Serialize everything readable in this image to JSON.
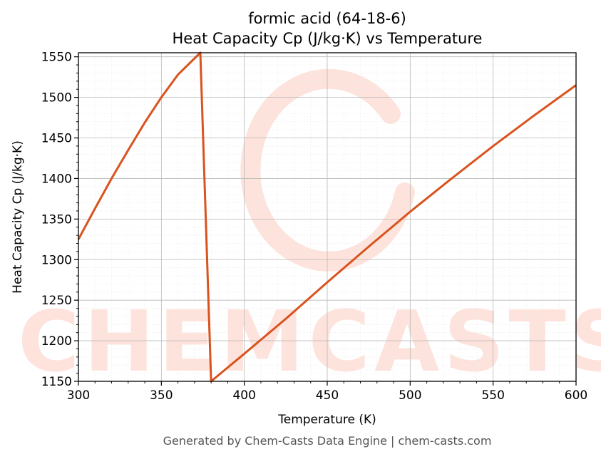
{
  "chart_data": {
    "type": "line",
    "title": "formic acid (64-18-6)",
    "subtitle": "Heat Capacity Cp (J/kg·K) vs Temperature",
    "xlabel": "Temperature (K)",
    "ylabel": "Heat Capacity Cp (J/kg·K)",
    "xlim": [
      300,
      600
    ],
    "ylim": [
      1150,
      1555
    ],
    "x_ticks": [
      300,
      350,
      400,
      450,
      500,
      550,
      600
    ],
    "y_ticks": [
      1150,
      1200,
      1250,
      1300,
      1350,
      1400,
      1450,
      1500,
      1550
    ],
    "grid": true,
    "series": [
      {
        "color": "#d9531e",
        "points": [
          [
            300,
            1325
          ],
          [
            310,
            1363
          ],
          [
            320,
            1400
          ],
          [
            330,
            1435
          ],
          [
            340,
            1469
          ],
          [
            350,
            1500
          ],
          [
            360,
            1528
          ],
          [
            373.5,
            1555
          ],
          [
            380,
            1150
          ],
          [
            400,
            1184
          ],
          [
            425,
            1227
          ],
          [
            450,
            1272
          ],
          [
            475,
            1316
          ],
          [
            500,
            1359
          ],
          [
            525,
            1400
          ],
          [
            550,
            1440
          ],
          [
            575,
            1478
          ],
          [
            600,
            1515
          ]
        ]
      }
    ]
  },
  "watermark": {
    "text": "CHEMCASTS"
  },
  "footer": "Generated by Chem-Casts Data Engine | chem-casts.com"
}
